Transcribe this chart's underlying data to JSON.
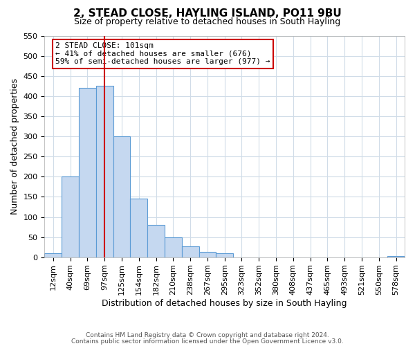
{
  "title": "2, STEAD CLOSE, HAYLING ISLAND, PO11 9BU",
  "subtitle": "Size of property relative to detached houses in South Hayling",
  "xlabel": "Distribution of detached houses by size in South Hayling",
  "ylabel": "Number of detached properties",
  "bin_labels": [
    "12sqm",
    "40sqm",
    "69sqm",
    "97sqm",
    "125sqm",
    "154sqm",
    "182sqm",
    "210sqm",
    "238sqm",
    "267sqm",
    "295sqm",
    "323sqm",
    "352sqm",
    "380sqm",
    "408sqm",
    "437sqm",
    "465sqm",
    "493sqm",
    "521sqm",
    "550sqm",
    "578sqm"
  ],
  "bar_heights": [
    10,
    200,
    420,
    425,
    300,
    145,
    80,
    50,
    27,
    14,
    10,
    0,
    0,
    0,
    0,
    0,
    0,
    0,
    0,
    0,
    3
  ],
  "bar_color": "#c5d8f0",
  "bar_edge_color": "#5b9bd5",
  "vline_x": 3,
  "vline_color": "#cc0000",
  "ylim": [
    0,
    550
  ],
  "yticks": [
    0,
    50,
    100,
    150,
    200,
    250,
    300,
    350,
    400,
    450,
    500,
    550
  ],
  "annotation_title": "2 STEAD CLOSE: 101sqm",
  "annotation_line1": "← 41% of detached houses are smaller (676)",
  "annotation_line2": "59% of semi-detached houses are larger (977) →",
  "annotation_box_color": "#cc0000",
  "footer_line1": "Contains HM Land Registry data © Crown copyright and database right 2024.",
  "footer_line2": "Contains public sector information licensed under the Open Government Licence v3.0.",
  "background_color": "#ffffff",
  "grid_color": "#d0dce8"
}
